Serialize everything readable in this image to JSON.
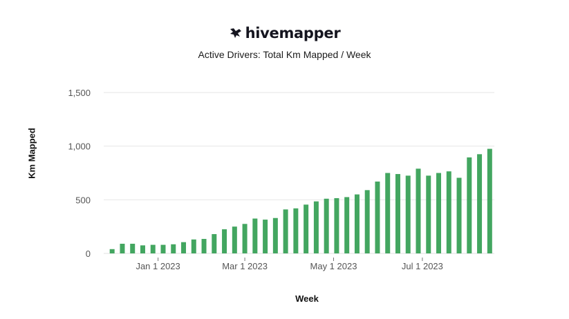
{
  "brand": {
    "logo_text": "hivemapper",
    "logo_icon": "hive-bee-icon"
  },
  "chart_data": {
    "type": "bar",
    "title": "Active Drivers: Total Km Mapped / Week",
    "xlabel": "Week",
    "ylabel": "Km Mapped",
    "ylim": [
      0,
      1500
    ],
    "yticks": [
      0,
      500,
      1000,
      1500
    ],
    "ytick_labels": [
      "0",
      "500",
      "1,000",
      "1,500"
    ],
    "xticks": [
      {
        "label": "Jan 1 2023",
        "index": 4.5
      },
      {
        "label": "Mar 1 2023",
        "index": 13
      },
      {
        "label": "May 1 2023",
        "index": 21.7
      },
      {
        "label": "Jul 1 2023",
        "index": 30.4
      }
    ],
    "grid": true,
    "bar_color": "#43a660",
    "values": [
      40,
      90,
      90,
      75,
      80,
      80,
      85,
      105,
      130,
      135,
      180,
      225,
      250,
      275,
      325,
      315,
      330,
      410,
      420,
      455,
      485,
      510,
      515,
      525,
      550,
      590,
      670,
      750,
      740,
      725,
      790,
      725,
      750,
      765,
      705,
      895,
      925,
      975
    ]
  }
}
